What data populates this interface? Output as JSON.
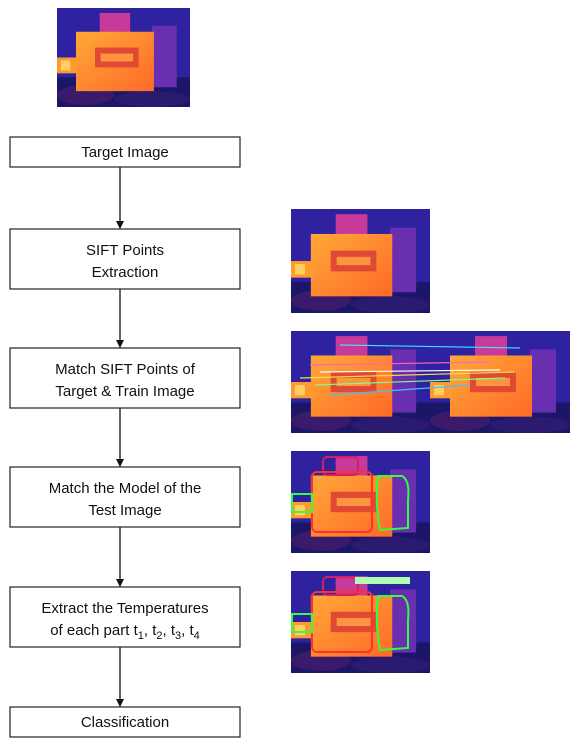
{
  "nodes": [
    {
      "lines": [
        "Target Image"
      ]
    },
    {
      "lines": [
        "SIFT Points",
        "Extraction"
      ]
    },
    {
      "lines": [
        "Match SIFT Points of",
        "Target & Train Image"
      ]
    },
    {
      "lines": [
        "Match the Model of the",
        "Test Image"
      ]
    },
    {
      "lines": [
        "Extract the Temperatures",
        [
          "of each part t",
          "1",
          ", t",
          "2",
          ", t",
          "3",
          ", t",
          "4"
        ]
      ]
    },
    {
      "lines": [
        "Classification"
      ]
    }
  ]
}
